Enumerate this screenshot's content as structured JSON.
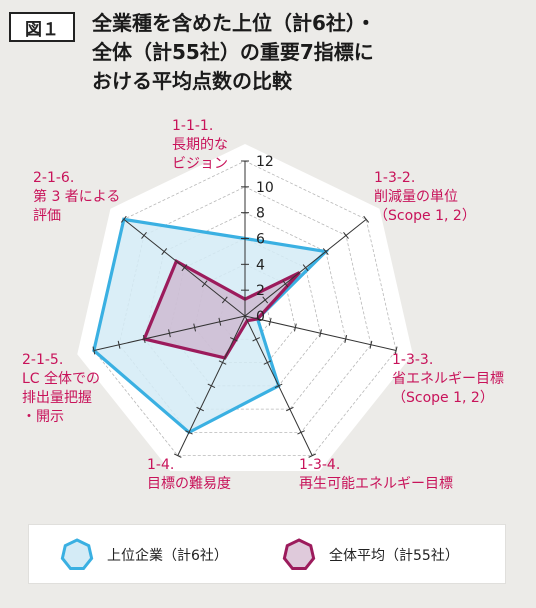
{
  "figure": {
    "badge": "図１",
    "title_lines": [
      "全業種を含めた上位（計6社）・",
      "全体（計55社）の重要7指標に",
      "おける平均点数の比較"
    ]
  },
  "colors": {
    "background": "#ecebe8",
    "label_text": "#c8135a",
    "top_line": "#3ab0e2",
    "top_fill": "#d4ebf6",
    "avg_line": "#9c1b5c",
    "avg_fill": "#c9a6c3",
    "axis": "#333333"
  },
  "chart_data": {
    "type": "radar",
    "categories": [
      [
        "1-1-1.",
        "長期的な",
        "ビジョン"
      ],
      [
        "1-3-2.",
        "削減量の単位",
        "（Scope 1, 2）"
      ],
      [
        "1-3-3.",
        "省エネルギー目標",
        "（Scope 1, 2）"
      ],
      [
        "1-3-4.",
        "再生可能エネルギー目標"
      ],
      [
        "1-4.",
        "目標の難易度"
      ],
      [
        "2-1-5.",
        "LC 全体での",
        "排出量把握",
        "・開示"
      ],
      [
        "2-1-6.",
        "第 3 者による",
        "評価"
      ]
    ],
    "rlim": [
      0,
      12
    ],
    "ticks": [
      12,
      10,
      8,
      6,
      4,
      2,
      0
    ],
    "series": [
      {
        "name": "上位企業（計6社）",
        "values": [
          6.0,
          8.0,
          1.0,
          6.0,
          10.0,
          12.0,
          12.0
        ]
      },
      {
        "name": "全体平均（計55社）",
        "values": [
          1.3,
          5.4,
          1.0,
          0.4,
          3.6,
          8.0,
          6.8
        ]
      }
    ],
    "legend": [
      "上位企業（計6社）",
      "全体平均（計55社）"
    ],
    "legend_position": "bottom",
    "grid": true
  }
}
